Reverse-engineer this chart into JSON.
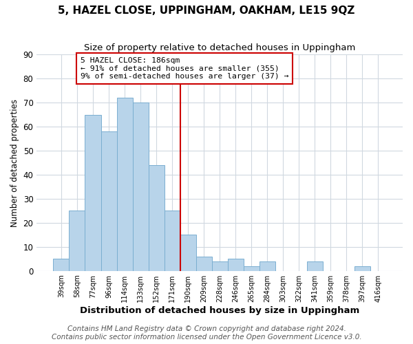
{
  "title": "5, HAZEL CLOSE, UPPINGHAM, OAKHAM, LE15 9QZ",
  "subtitle": "Size of property relative to detached houses in Uppingham",
  "xlabel": "Distribution of detached houses by size in Uppingham",
  "ylabel": "Number of detached properties",
  "bar_labels": [
    "39sqm",
    "58sqm",
    "77sqm",
    "96sqm",
    "114sqm",
    "133sqm",
    "152sqm",
    "171sqm",
    "190sqm",
    "209sqm",
    "228sqm",
    "246sqm",
    "265sqm",
    "284sqm",
    "303sqm",
    "322sqm",
    "341sqm",
    "359sqm",
    "378sqm",
    "397sqm",
    "416sqm"
  ],
  "bar_heights": [
    5,
    25,
    65,
    58,
    72,
    70,
    44,
    25,
    15,
    6,
    4,
    5,
    2,
    4,
    0,
    0,
    4,
    0,
    0,
    2,
    0
  ],
  "bar_color": "#b8d4ea",
  "bar_edge_color": "#7aaed0",
  "vline_index": 8,
  "vline_color": "#cc0000",
  "annotation_title": "5 HAZEL CLOSE: 186sqm",
  "annotation_line1": "← 91% of detached houses are smaller (355)",
  "annotation_line2": "9% of semi-detached houses are larger (37) →",
  "annotation_box_facecolor": "#ffffff",
  "annotation_box_edgecolor": "#cc0000",
  "ylim": [
    0,
    90
  ],
  "yticks": [
    0,
    10,
    20,
    30,
    40,
    50,
    60,
    70,
    80,
    90
  ],
  "background_color": "#ffffff",
  "plot_bg_color": "#ffffff",
  "grid_color": "#d0d8e0",
  "title_fontsize": 11,
  "subtitle_fontsize": 9.5,
  "xlabel_fontsize": 9.5,
  "ylabel_fontsize": 8.5,
  "footer_line1": "Contains HM Land Registry data © Crown copyright and database right 2024.",
  "footer_line2": "Contains public sector information licensed under the Open Government Licence v3.0.",
  "footer_fontsize": 7.5
}
